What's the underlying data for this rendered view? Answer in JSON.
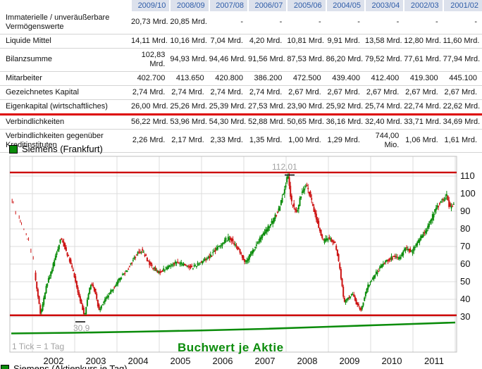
{
  "table": {
    "columns": [
      "2009/10",
      "2008/09",
      "2007/08",
      "2006/07",
      "2005/06",
      "2004/05",
      "2003/04",
      "2002/03",
      "2001/02"
    ],
    "rows": [
      {
        "label": "Immaterielle / unveräußerbare Vermögenswerte",
        "highlight": false,
        "values": [
          "20,73 Mrd.",
          "20,85 Mrd.",
          "-",
          "-",
          "-",
          "-",
          "-",
          "-",
          "-"
        ]
      },
      {
        "label": "Liquide Mittel",
        "highlight": false,
        "values": [
          "14,11 Mrd.",
          "10,16 Mrd.",
          "7,04 Mrd.",
          "4,20 Mrd.",
          "10,81 Mrd.",
          "9,91 Mrd.",
          "13,58 Mrd.",
          "12,80 Mrd.",
          "11,60 Mrd."
        ]
      },
      {
        "label": "Bilanzsumme",
        "highlight": false,
        "values": [
          "102,83|Mrd.",
          "94,93 Mrd.",
          "94,46 Mrd.",
          "91,56 Mrd.",
          "87,53 Mrd.",
          "86,20 Mrd.",
          "79,52 Mrd.",
          "77,61 Mrd.",
          "77,94 Mrd."
        ]
      },
      {
        "label": "Mitarbeiter",
        "highlight": false,
        "values": [
          "402.700",
          "413.650",
          "420.800",
          "386.200",
          "472.500",
          "439.400",
          "412.400",
          "419.300",
          "445.100"
        ]
      },
      {
        "label": "Gezeichnetes Kapital",
        "highlight": false,
        "values": [
          "2,74 Mrd.",
          "2,74 Mrd.",
          "2,74 Mrd.",
          "2,74 Mrd.",
          "2,67 Mrd.",
          "2,67 Mrd.",
          "2,67 Mrd.",
          "2,67 Mrd.",
          "2,67 Mrd."
        ]
      },
      {
        "label": "Eigenkapital (wirtschaftliches)",
        "highlight": true,
        "values": [
          "26,00 Mrd.",
          "25,26 Mrd.",
          "25,39 Mrd.",
          "27,53 Mrd.",
          "23,90 Mrd.",
          "25,92 Mrd.",
          "25,74 Mrd.",
          "22,74 Mrd.",
          "22,62 Mrd."
        ]
      },
      {
        "label": "Verbindlichkeiten",
        "highlight": false,
        "values": [
          "56,22 Mrd.",
          "53,96 Mrd.",
          "54,30 Mrd.",
          "52,88 Mrd.",
          "50,65 Mrd.",
          "36,16 Mrd.",
          "32,40 Mrd.",
          "33,71 Mrd.",
          "34,69 Mrd."
        ]
      },
      {
        "label": "Verbindlichkeiten gegenüber Kreditinstituten",
        "highlight": false,
        "values": [
          "2,26 Mrd.",
          "2,17 Mrd.",
          "2,33 Mrd.",
          "1,35 Mrd.",
          "1,00 Mrd.",
          "1,29 Mrd.",
          "744,00|Mio.",
          "1,06 Mrd.",
          "1,61 Mrd."
        ]
      }
    ],
    "header_bg": "#dce1ec",
    "header_text_color": "#2e5ca8",
    "highlight_color": "#dd0000"
  },
  "chart": {
    "legend_label": "Siemens (Frankfurt)",
    "footnote": "1 Tick = 1 Tag",
    "overlay_label": "Buchwert je Aktie",
    "high_label": "112,01",
    "low_label": "30,9",
    "up_color": "#0b8c0b",
    "down_color": "#cc1111",
    "alert_line_color": "#cc0000"
  },
  "bottom_legend": {
    "label": "Siemens (Aktienkurs je Tag)"
  },
  "chart_data": {
    "type": "line",
    "title": "Siemens (Frankfurt)",
    "xlabel": "",
    "ylabel": "",
    "xlim": [
      2001,
      2011.5
    ],
    "ylim": [
      20,
      120
    ],
    "x_ticks": [
      2002,
      2003,
      2004,
      2005,
      2006,
      2007,
      2008,
      2009,
      2010,
      2011
    ],
    "y_ticks": [
      110,
      100,
      90,
      80,
      70,
      60,
      50,
      40,
      30
    ],
    "grid": true,
    "legend_position": "top-left",
    "series": [
      {
        "name": "Siemens (Frankfurt)",
        "style": "candlestick",
        "x": [
          2001.0,
          2001.1,
          2001.25,
          2001.4,
          2001.55,
          2001.72,
          2001.85,
          2002.0,
          2002.2,
          2002.35,
          2002.5,
          2002.62,
          2002.76,
          2002.9,
          2003.0,
          2003.1,
          2003.22,
          2003.4,
          2003.6,
          2003.8,
          2004.0,
          2004.12,
          2004.3,
          2004.5,
          2004.7,
          2004.9,
          2005.1,
          2005.3,
          2005.5,
          2005.7,
          2005.9,
          2006.1,
          2006.2,
          2006.4,
          2006.57,
          2006.75,
          2006.9,
          2007.05,
          2007.2,
          2007.35,
          2007.5,
          2007.57,
          2007.65,
          2007.78,
          2007.9,
          2008.0,
          2008.1,
          2008.25,
          2008.4,
          2008.55,
          2008.7,
          2008.8,
          2008.9,
          2009.0,
          2009.1,
          2009.2,
          2009.3,
          2009.45,
          2009.6,
          2009.75,
          2009.9,
          2010.05,
          2010.2,
          2010.35,
          2010.5,
          2010.65,
          2010.8,
          2010.95,
          2011.1,
          2011.22,
          2011.32,
          2011.4,
          2011.47
        ],
        "values": [
          97,
          90,
          82,
          74,
          60,
          31,
          47,
          58,
          75,
          66,
          55,
          42,
          30.9,
          49,
          45,
          34,
          39,
          45,
          52,
          58,
          66,
          68,
          60,
          55,
          58,
          61,
          60,
          58,
          61,
          64,
          69,
          74,
          75,
          68,
          61,
          68,
          74,
          79,
          84,
          91,
          104,
          110,
          95,
          89,
          101,
          106,
          98,
          85,
          73,
          75,
          71,
          57,
          38,
          41,
          43,
          37,
          34,
          47,
          53,
          58,
          62,
          64,
          63,
          69,
          67,
          73,
          78,
          85,
          93,
          96,
          99,
          92,
          93
        ]
      },
      {
        "name": "Buchwert je Aktie",
        "style": "line",
        "x": [
          2001.0,
          2002.5,
          2004.0,
          2005.5,
          2007.0,
          2008.5,
          2010.0,
          2011.5
        ],
        "values": [
          20.6,
          21.0,
          21.6,
          22.3,
          23.2,
          24.4,
          25.6,
          26.8
        ]
      }
    ],
    "hlines": [
      {
        "value": 112.01,
        "label": "112,01",
        "color": "#cc0000"
      },
      {
        "value": 30.9,
        "label": "30,9",
        "color": "#cc0000"
      }
    ],
    "annotations": [
      "1 Tick = 1 Tag",
      "Buchwert je Aktie"
    ]
  }
}
